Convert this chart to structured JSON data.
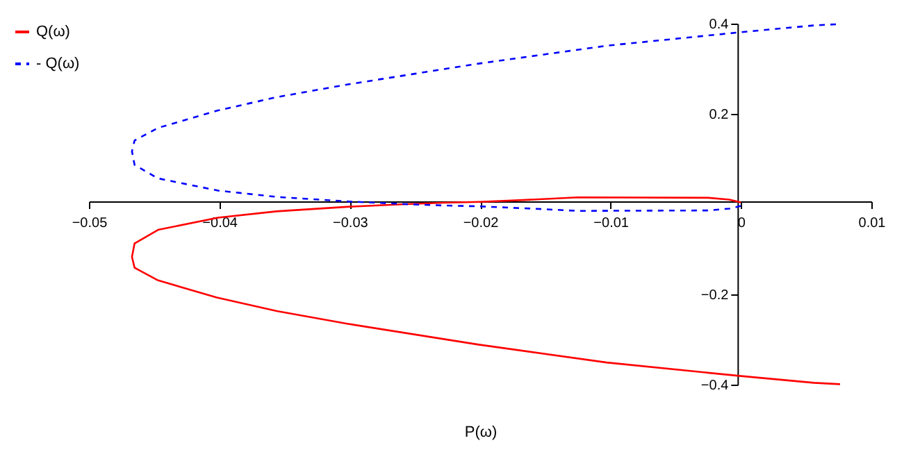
{
  "chart_data": {
    "type": "line",
    "xlabel": "P(ω)",
    "legend": "left",
    "marker": "none",
    "x": [
      0,
      -0.0009,
      -0.0025,
      -0.0125,
      -0.016,
      -0.02,
      -0.0228,
      -0.0257,
      -0.0302,
      -0.0356,
      -0.0401,
      -0.0447,
      -0.0465,
      -0.0467,
      -0.0465,
      -0.0447,
      -0.0402,
      -0.0356,
      -0.0302,
      -0.0202,
      -0.0103,
      0,
      0.0056,
      0.0076
    ],
    "series": [
      {
        "name": "Q(ω)",
        "color": "#ff0000",
        "line_style": "solid",
        "values": [
          0.004,
          0.01,
          0.014,
          0.015,
          0.01,
          0.005,
          0.003,
          0,
          -0.006,
          -0.016,
          -0.03,
          -0.057,
          -0.087,
          -0.117,
          -0.141,
          -0.169,
          -0.207,
          -0.237,
          -0.265,
          -0.311,
          -0.351,
          -0.381,
          -0.396,
          -0.399
        ]
      },
      {
        "name": "- Q(ω)",
        "color": "#0000ff",
        "line_style": "dashed",
        "values": [
          -0.004,
          -0.01,
          -0.014,
          -0.015,
          -0.01,
          -0.005,
          -0.003,
          0,
          0.006,
          0.016,
          0.03,
          0.057,
          0.087,
          0.117,
          0.141,
          0.169,
          0.207,
          0.237,
          0.265,
          0.311,
          0.351,
          0.381,
          0.396,
          0.399
        ]
      }
    ],
    "xlim": [
      -0.05,
      0.01
    ],
    "ylim": [
      -0.4,
      0.4
    ],
    "xticks": [
      -0.05,
      -0.04,
      -0.03,
      -0.02,
      -0.01,
      {
        "value": 0,
        "label": "0"
      },
      0.01
    ],
    "yticks": [
      -0.4,
      -0.2,
      0.2,
      0.4
    ]
  }
}
